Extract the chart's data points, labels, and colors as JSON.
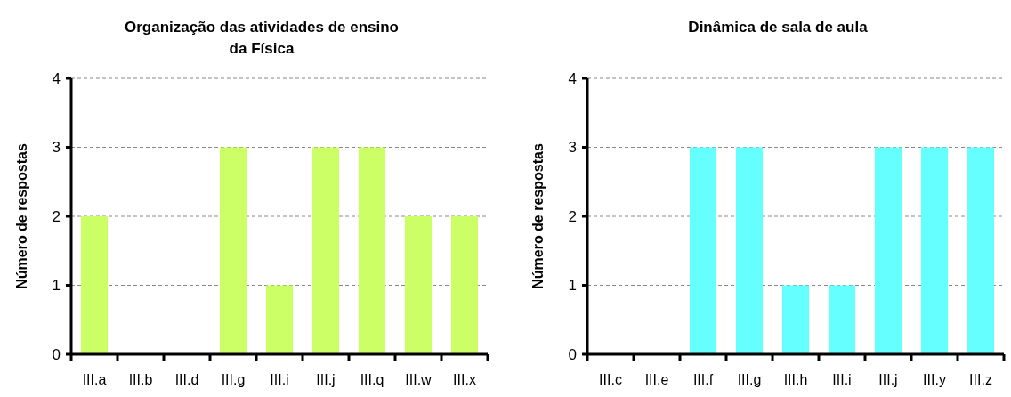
{
  "chart_data": [
    {
      "type": "bar",
      "title": "Organização das atividades de ensino da Física",
      "ylabel": "Número de respostas",
      "categories": [
        "III.a",
        "III.b",
        "III.d",
        "III.g",
        "III.i",
        "III.j",
        "III.q",
        "III.w",
        "III.x"
      ],
      "series": [
        {
          "color": "#ccff66",
          "values": [
            2,
            0,
            0,
            3,
            1,
            3,
            3,
            2,
            2
          ]
        }
      ],
      "ylim": [
        0,
        4
      ],
      "yticks": [
        0,
        1,
        2,
        3,
        4
      ],
      "grid": "y"
    },
    {
      "type": "bar",
      "title": "Dinâmica de sala de aula",
      "ylabel": "Número de respostas",
      "categories": [
        "III.c",
        "III.e",
        "III.f",
        "III.g",
        "III.h",
        "III.i",
        "III.j",
        "III.y",
        "III.z"
      ],
      "series": [
        {
          "color": "#66ffff",
          "values": [
            0,
            0,
            3,
            3,
            1,
            1,
            3,
            3,
            3
          ]
        }
      ],
      "ylim": [
        0,
        4
      ],
      "yticks": [
        0,
        1,
        2,
        3,
        4
      ],
      "grid": "y"
    }
  ]
}
